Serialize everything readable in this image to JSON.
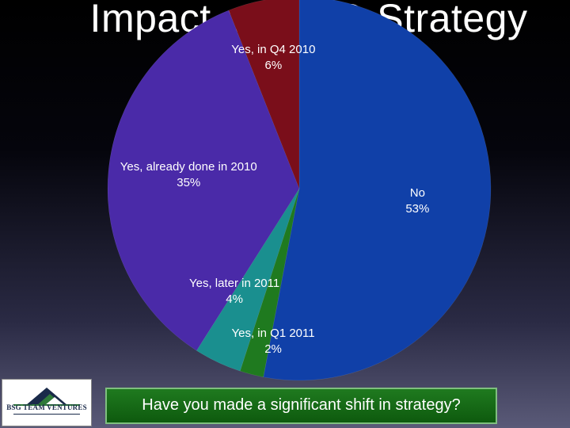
{
  "slide": {
    "title": "Impact on CEO Strategy",
    "question": "Have you made a significant shift in strategy?",
    "logo_text": "BSG TEAM VENTURES"
  },
  "chart_data": {
    "type": "pie",
    "title": "Impact on CEO Strategy",
    "slices": [
      {
        "label": "No",
        "value": 53,
        "pct_label": "53%",
        "color": "#1040a8"
      },
      {
        "label": "Yes, in Q1 2011",
        "value": 2,
        "pct_label": "2%",
        "color": "#1f7a1f"
      },
      {
        "label": "Yes, later in 2011",
        "value": 4,
        "pct_label": "4%",
        "color": "#1a8f8f"
      },
      {
        "label": "Yes, already done in 2010",
        "value": 35,
        "pct_label": "35%",
        "color": "#4a2aa8"
      },
      {
        "label": "Yes, in Q4 2010",
        "value": 6,
        "pct_label": "6%",
        "color": "#7a0e1a"
      }
    ]
  }
}
